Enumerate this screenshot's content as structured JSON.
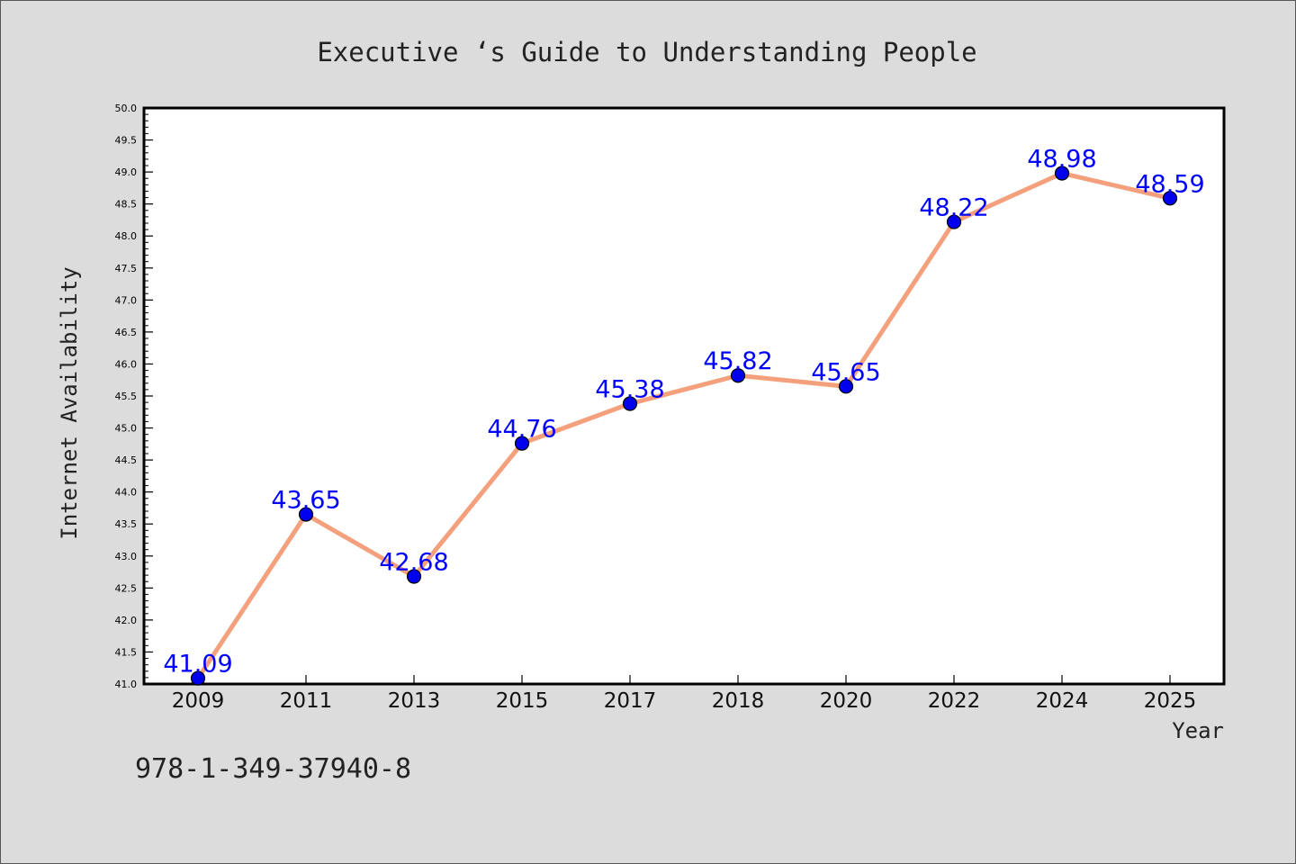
{
  "chart_data": {
    "type": "line",
    "title": "Executive ‘s Guide to Understanding People",
    "xlabel": "Year",
    "ylabel": "Internet Availability",
    "categories": [
      "2009",
      "2011",
      "2013",
      "2015",
      "2017",
      "2018",
      "2020",
      "2022",
      "2024",
      "2025"
    ],
    "series": [
      {
        "values": [
          41.09,
          43.65,
          42.68,
          44.76,
          45.38,
          45.82,
          45.65,
          48.22,
          48.98,
          48.59
        ],
        "labels": [
          "41.09",
          "43.65",
          "42.68",
          "44.76",
          "45.38",
          "45.82",
          "45.65",
          "48.22",
          "48.98",
          "48.59"
        ]
      }
    ],
    "ylim": [
      41.0,
      50.0
    ],
    "yticks": [
      "41.0",
      "41.5",
      "42.0",
      "42.5",
      "43.0",
      "43.5",
      "44.0",
      "44.5",
      "45.0",
      "45.5",
      "46.0",
      "46.5",
      "47.0",
      "47.5",
      "48.0",
      "48.5",
      "49.0",
      "49.5",
      "50.0"
    ],
    "grid": false,
    "colors": {
      "line": "#f4a07c",
      "marker": "#0000ee",
      "label": "#0000ff",
      "plot_bg": "#ffffff",
      "page_bg": "#dcdcdc"
    }
  },
  "footer": {
    "isbn": "978-1-349-37940-8"
  }
}
